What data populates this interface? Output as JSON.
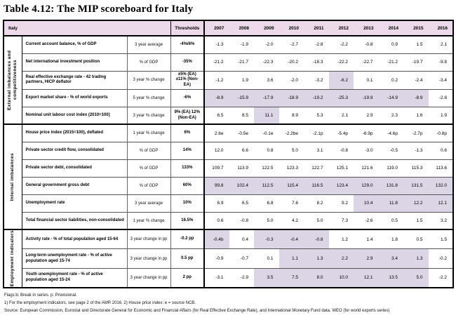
{
  "title": "Table 4.12: The MIP scoreboard for Italy",
  "colors": {
    "header_bg": "#ecd9e9",
    "highlight_bg": "#dbd5e6"
  },
  "header": {
    "region": "Italy",
    "thresholds_label": "Thresholds",
    "years": [
      "2007",
      "2008",
      "2009",
      "2010",
      "2011",
      "2012",
      "2013",
      "2014",
      "2015",
      "2016"
    ]
  },
  "groups": [
    {
      "label": "External imbalances and competitiveness",
      "rows": [
        {
          "indicator": "Current account balance, % of GDP",
          "stat": "3 year average",
          "threshold": "-4%/6%",
          "values": [
            "-1.3",
            "-1.9",
            "-2.0",
            "-2.7",
            "-2.8",
            "-2.2",
            "-0.8",
            "0.9",
            "1.5",
            "2.1"
          ],
          "highlight": []
        },
        {
          "indicator": "Net international investment position",
          "stat": "% of GDP",
          "threshold": "-35%",
          "values": [
            "-21.2",
            "-21.7",
            "-22.3",
            "-20.2",
            "-18.3",
            "-22.2",
            "-22.7",
            "-21.2",
            "-19.7",
            "-9.8"
          ],
          "highlight": []
        },
        {
          "indicator": "Real effective exchange rate - 42 trading partners, HICP deflator",
          "stat": "3 year % change",
          "threshold": "±5% (EA) ±11% (Non-EA)",
          "values": [
            "-1.2",
            "1.9",
            "3.6",
            "-2.0",
            "-3.2",
            "-6.2",
            "0.1",
            "0.2",
            "-2.4",
            "-3.4"
          ],
          "highlight": [
            5
          ]
        },
        {
          "indicator": "Export market share - % of world exports",
          "stat": "5 year % change",
          "threshold": "-6%",
          "values": [
            "-8.9",
            "-15.9",
            "-17.9",
            "-18.9",
            "-19.2",
            "-25.3",
            "-19.9",
            "-14.9",
            "-8.9",
            "-2.8"
          ],
          "highlight": [
            0,
            1,
            2,
            3,
            4,
            5,
            6,
            7,
            8
          ]
        },
        {
          "indicator": "Nominal unit labour cost index (2010=100)",
          "stat": "3 year % change",
          "threshold": "9% (EA) 12% (Non-EA)",
          "values": [
            "6.5",
            "8.5",
            "11.1",
            "8.9",
            "5.3",
            "2.1",
            "2.9",
            "2.3",
            "1.6",
            "1.9"
          ],
          "highlight": [
            2
          ]
        }
      ]
    },
    {
      "label": "Internal imbalances",
      "rows": [
        {
          "indicator": "House price index (2015=100), deflated",
          "stat": "1 year % change",
          "threshold": "6%",
          "values": [
            "2.6e",
            "-0.5e",
            "-0.1e",
            "-2.2be",
            "-2.1p",
            "-5.4p",
            "-6.9p",
            "-4.6p",
            "-2.7p",
            "-0.8p"
          ],
          "highlight": []
        },
        {
          "indicator": "Private sector credit flow, consolidated",
          "stat": "% of GDP",
          "threshold": "14%",
          "values": [
            "12.0",
            "6.6",
            "0.8",
            "5.0",
            "3.1",
            "-0.8",
            "-3.0",
            "-0.5",
            "-1.3",
            "0.6"
          ],
          "highlight": []
        },
        {
          "indicator": "Private sector debt, consolidated",
          "stat": "% of GDP",
          "threshold": "133%",
          "values": [
            "109.7",
            "113.9",
            "122.5",
            "123.3",
            "122.7",
            "125.1",
            "121.6",
            "119.0",
            "115.3",
            "113.6"
          ],
          "highlight": []
        },
        {
          "indicator": "General government gross debt",
          "stat": "% of GDP",
          "threshold": "60%",
          "values": [
            "99.8",
            "102.4",
            "112.5",
            "115.4",
            "116.5",
            "123.4",
            "129.0",
            "131.8",
            "131.5",
            "132.0"
          ],
          "highlight": [
            0,
            1,
            2,
            3,
            4,
            5,
            6,
            7,
            8,
            9
          ]
        },
        {
          "indicator": "Unemployment rate",
          "stat": "3 year average",
          "threshold": "10%",
          "values": [
            "6.9",
            "6.5",
            "6.8",
            "7.6",
            "8.2",
            "9.2",
            "10.4",
            "11.8",
            "12.2",
            "12.1"
          ],
          "highlight": [
            6,
            7,
            8,
            9
          ]
        },
        {
          "indicator": "Total financial sector liabilities, non-consolidated",
          "stat": "1 year % change",
          "threshold": "16.5%",
          "values": [
            "0.6",
            "-0.8",
            "5.0",
            "4.2",
            "5.0",
            "7.3",
            "-2.6",
            "0.5",
            "1.5",
            "3.2"
          ],
          "highlight": []
        }
      ]
    },
    {
      "label": "Employment indicators",
      "rows": [
        {
          "indicator": "Activity rate - % of total population aged 15-64",
          "stat": "3 year change in pp",
          "threshold": "-0.2 pp",
          "values": [
            "-0.4b",
            "0.4",
            "-0.3",
            "-0.4",
            "-0.8",
            "1.2",
            "1.4",
            "1.8",
            "0.5",
            "1.5"
          ],
          "highlight": [
            0,
            2,
            3,
            4
          ]
        },
        {
          "indicator": "Long-term unemployment rate - % of active population aged 15-74",
          "stat": "3 year change in pp",
          "threshold": "0.5 pp",
          "values": [
            "-0.9",
            "-0.7",
            "0.1",
            "1.1",
            "1.3",
            "2.2",
            "2.9",
            "3.4",
            "1.3",
            "-0.2"
          ],
          "highlight": [
            3,
            4,
            5,
            6,
            7,
            8
          ]
        },
        {
          "indicator": "Youth unemployment rate - % of active population aged 15-24",
          "stat": "3 year change in pp",
          "threshold": "2 pp",
          "values": [
            "-3.1",
            "-2.9",
            "3.5",
            "7.5",
            "8.0",
            "10.0",
            "12.1",
            "13.5",
            "5.0",
            "-2.2"
          ],
          "highlight": [
            2,
            3,
            4,
            5,
            6,
            7,
            8
          ]
        }
      ]
    }
  ],
  "footnotes": {
    "lines": [
      "Flags:b: Break in series. p: Provisional.",
      "1) For the employment indicators, see page 2 of the AMR 2016. 2) House price index: e = source NCB.",
      "Source: European Commission, Eurostat and Directorate General for Economic and Financial Affairs (for Real Effective Exchange Rate), and International Monetary Fund data, WEO (for world exports series)"
    ]
  }
}
